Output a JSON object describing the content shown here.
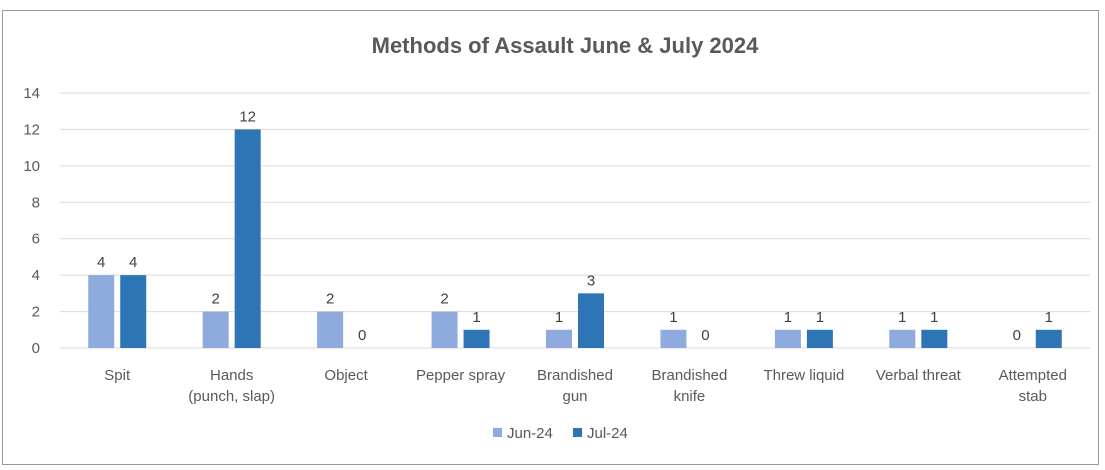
{
  "chart_data": {
    "type": "bar",
    "title": "Methods of Assault June & July 2024",
    "categories": [
      [
        "Spit"
      ],
      [
        "Hands",
        "(punch, slap)"
      ],
      [
        "Object"
      ],
      [
        "Pepper spray"
      ],
      [
        "Brandished",
        "gun"
      ],
      [
        "Brandished",
        "knife"
      ],
      [
        "Threw liquid"
      ],
      [
        "Verbal threat"
      ],
      [
        "Attempted",
        "stab"
      ]
    ],
    "series": [
      {
        "name": "Jun-24",
        "color": "#8faadc",
        "values": [
          4,
          2,
          2,
          2,
          1,
          1,
          1,
          1,
          0
        ]
      },
      {
        "name": "Jul-24",
        "color": "#2e75b6",
        "values": [
          4,
          12,
          0,
          1,
          3,
          0,
          1,
          1,
          1
        ]
      }
    ],
    "ylim": [
      0,
      14
    ],
    "yticks": [
      0,
      2,
      4,
      6,
      8,
      10,
      12,
      14
    ],
    "grid": true,
    "legend": "bottom"
  }
}
